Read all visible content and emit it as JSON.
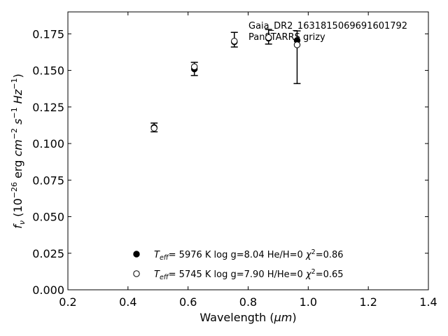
{
  "chart_data": {
    "type": "scatter",
    "xlabel": "Wavelength (μm)",
    "ylabel": "fν (10⁻²⁶ erg cm⁻² s⁻¹ Hz⁻¹)",
    "xlim": [
      0.2,
      1.4
    ],
    "ylim": [
      0.0,
      0.19
    ],
    "xticks": [
      0.2,
      0.4,
      0.6,
      0.8,
      1.0,
      1.2,
      1.4
    ],
    "xtick_labels": [
      "0.2",
      "0.4",
      "0.6",
      "0.8",
      "1.0",
      "1.2",
      "1.4"
    ],
    "yticks": [
      0.0,
      0.025,
      0.05,
      0.075,
      0.1,
      0.125,
      0.15,
      0.175
    ],
    "ytick_labels": [
      "0.000",
      "0.025",
      "0.050",
      "0.075",
      "0.100",
      "0.125",
      "0.150",
      "0.175"
    ],
    "grid": false,
    "annotations": [
      "Gaia_DR2_1631815069691601792",
      "PanSTARRS grizy"
    ],
    "observed": {
      "x": [
        0.487,
        0.621,
        0.754,
        0.868,
        0.963
      ],
      "y": [
        0.111,
        0.151,
        0.171,
        0.173,
        0.159
      ],
      "yerr": [
        0.003,
        0.0045,
        0.005,
        0.005,
        0.018
      ],
      "marker": "errorbar"
    },
    "series": [
      {
        "marker": "filled-circle",
        "color": "#000000",
        "x": [
          0.487,
          0.621,
          0.754,
          0.868,
          0.963
        ],
        "y": [
          0.111,
          0.151,
          0.1695,
          0.172,
          0.1705
        ],
        "legend": "T_eff=  5976 K  log g=8.04  He/H=0  χ²=0.86"
      },
      {
        "marker": "open-circle",
        "color": "#000000",
        "x": [
          0.487,
          0.621,
          0.754,
          0.868,
          0.963
        ],
        "y": [
          0.1105,
          0.1525,
          0.17,
          0.1725,
          0.1675
        ],
        "legend": "T_eff=  5745 K  log g=7.90  H/He=0  χ²=0.65"
      }
    ],
    "legend": {
      "placement": "lower-center",
      "entries": [
        {
          "symbol": "filled-circle",
          "teff_sub": "eff",
          "rest": "=  5976 K  log g=8.04  He/H=0  ",
          "chi_sup": "2",
          "chi_val": "=0.86"
        },
        {
          "symbol": "open-circle",
          "teff_sub": "eff",
          "rest": "=  5745 K  log g=7.90  H/He=0  ",
          "chi_sup": "2",
          "chi_val": "=0.65"
        }
      ]
    }
  }
}
